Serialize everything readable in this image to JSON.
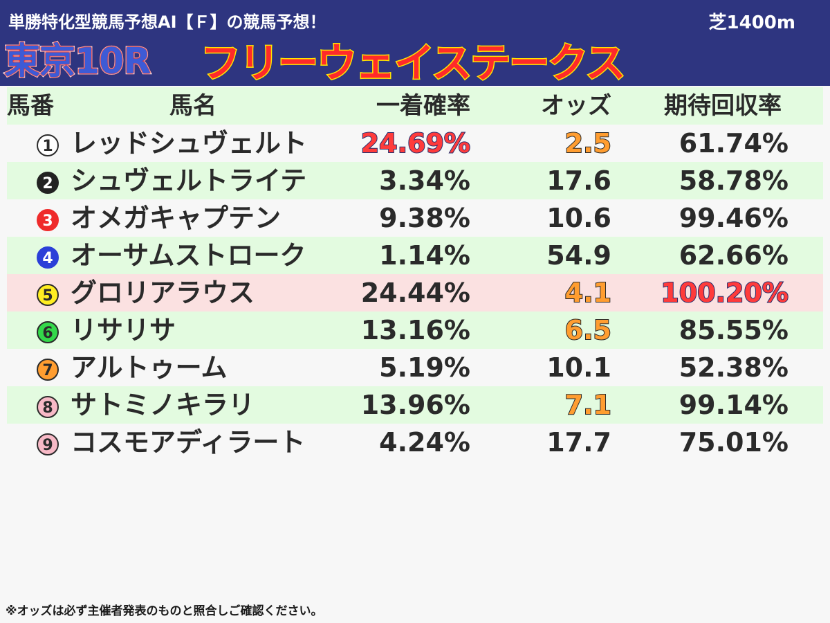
{
  "header": {
    "subtitle": "単勝特化型競馬予想AI【Ｆ】の競馬予想！",
    "surface": "芝1400m",
    "race": "東京10R",
    "race_name": "フリーウェイステークス"
  },
  "columns": {
    "num": "馬番",
    "name": "馬名",
    "prob": "一着確率",
    "odds": "オッズ",
    "ret": "期待回収率"
  },
  "horses": [
    {
      "num": "1",
      "name": "レッドシュヴェルト",
      "prob": "24.69%",
      "odds": "2.5",
      "ret": "61.74%",
      "badge_bg": "#ffffff",
      "badge_fg": "#2a2a2a",
      "badge_border": "#2a2a2a",
      "prob_hl": "red",
      "odds_hl": "orange",
      "ret_hl": ""
    },
    {
      "num": "2",
      "name": "シュヴェルトライテ",
      "prob": "3.34%",
      "odds": "17.6",
      "ret": "58.78%",
      "badge_bg": "#222222",
      "badge_fg": "#ffffff",
      "badge_border": "#222222",
      "prob_hl": "",
      "odds_hl": "",
      "ret_hl": ""
    },
    {
      "num": "3",
      "name": "オメガキャプテン",
      "prob": "9.38%",
      "odds": "10.6",
      "ret": "99.46%",
      "badge_bg": "#ef2b2b",
      "badge_fg": "#ffffff",
      "badge_border": "#ef2b2b",
      "prob_hl": "",
      "odds_hl": "",
      "ret_hl": ""
    },
    {
      "num": "4",
      "name": "オーサムストローク",
      "prob": "1.14%",
      "odds": "54.9",
      "ret": "62.66%",
      "badge_bg": "#2b3fd8",
      "badge_fg": "#ffffff",
      "badge_border": "#2b3fd8",
      "prob_hl": "",
      "odds_hl": "",
      "ret_hl": ""
    },
    {
      "num": "5",
      "name": "グロリアラウス",
      "prob": "24.44%",
      "odds": "4.1",
      "ret": "100.20%",
      "badge_bg": "#ffee22",
      "badge_fg": "#2a2a2a",
      "badge_border": "#2a2a2a",
      "prob_hl": "",
      "odds_hl": "orange",
      "ret_hl": "red"
    },
    {
      "num": "6",
      "name": "リサリサ",
      "prob": "13.16%",
      "odds": "6.5",
      "ret": "85.55%",
      "badge_bg": "#33d94a",
      "badge_fg": "#2a2a2a",
      "badge_border": "#2a2a2a",
      "prob_hl": "",
      "odds_hl": "orange",
      "ret_hl": ""
    },
    {
      "num": "7",
      "name": "アルトゥーム",
      "prob": "5.19%",
      "odds": "10.1",
      "ret": "52.38%",
      "badge_bg": "#ff9d30",
      "badge_fg": "#2a2a2a",
      "badge_border": "#2a2a2a",
      "prob_hl": "",
      "odds_hl": "",
      "ret_hl": ""
    },
    {
      "num": "8",
      "name": "サトミノキラリ",
      "prob": "13.96%",
      "odds": "7.1",
      "ret": "99.14%",
      "badge_bg": "#f7b9c6",
      "badge_fg": "#2a2a2a",
      "badge_border": "#2a2a2a",
      "prob_hl": "",
      "odds_hl": "orange",
      "ret_hl": ""
    },
    {
      "num": "9",
      "name": "コスモアディラート",
      "prob": "4.24%",
      "odds": "17.7",
      "ret": "75.01%",
      "badge_bg": "#f7b9c6",
      "badge_fg": "#2a2a2a",
      "badge_border": "#2a2a2a",
      "prob_hl": "",
      "odds_hl": "",
      "ret_hl": ""
    }
  ],
  "footer": "※オッズは必ず主催者発表のものと照合しご確認ください。"
}
